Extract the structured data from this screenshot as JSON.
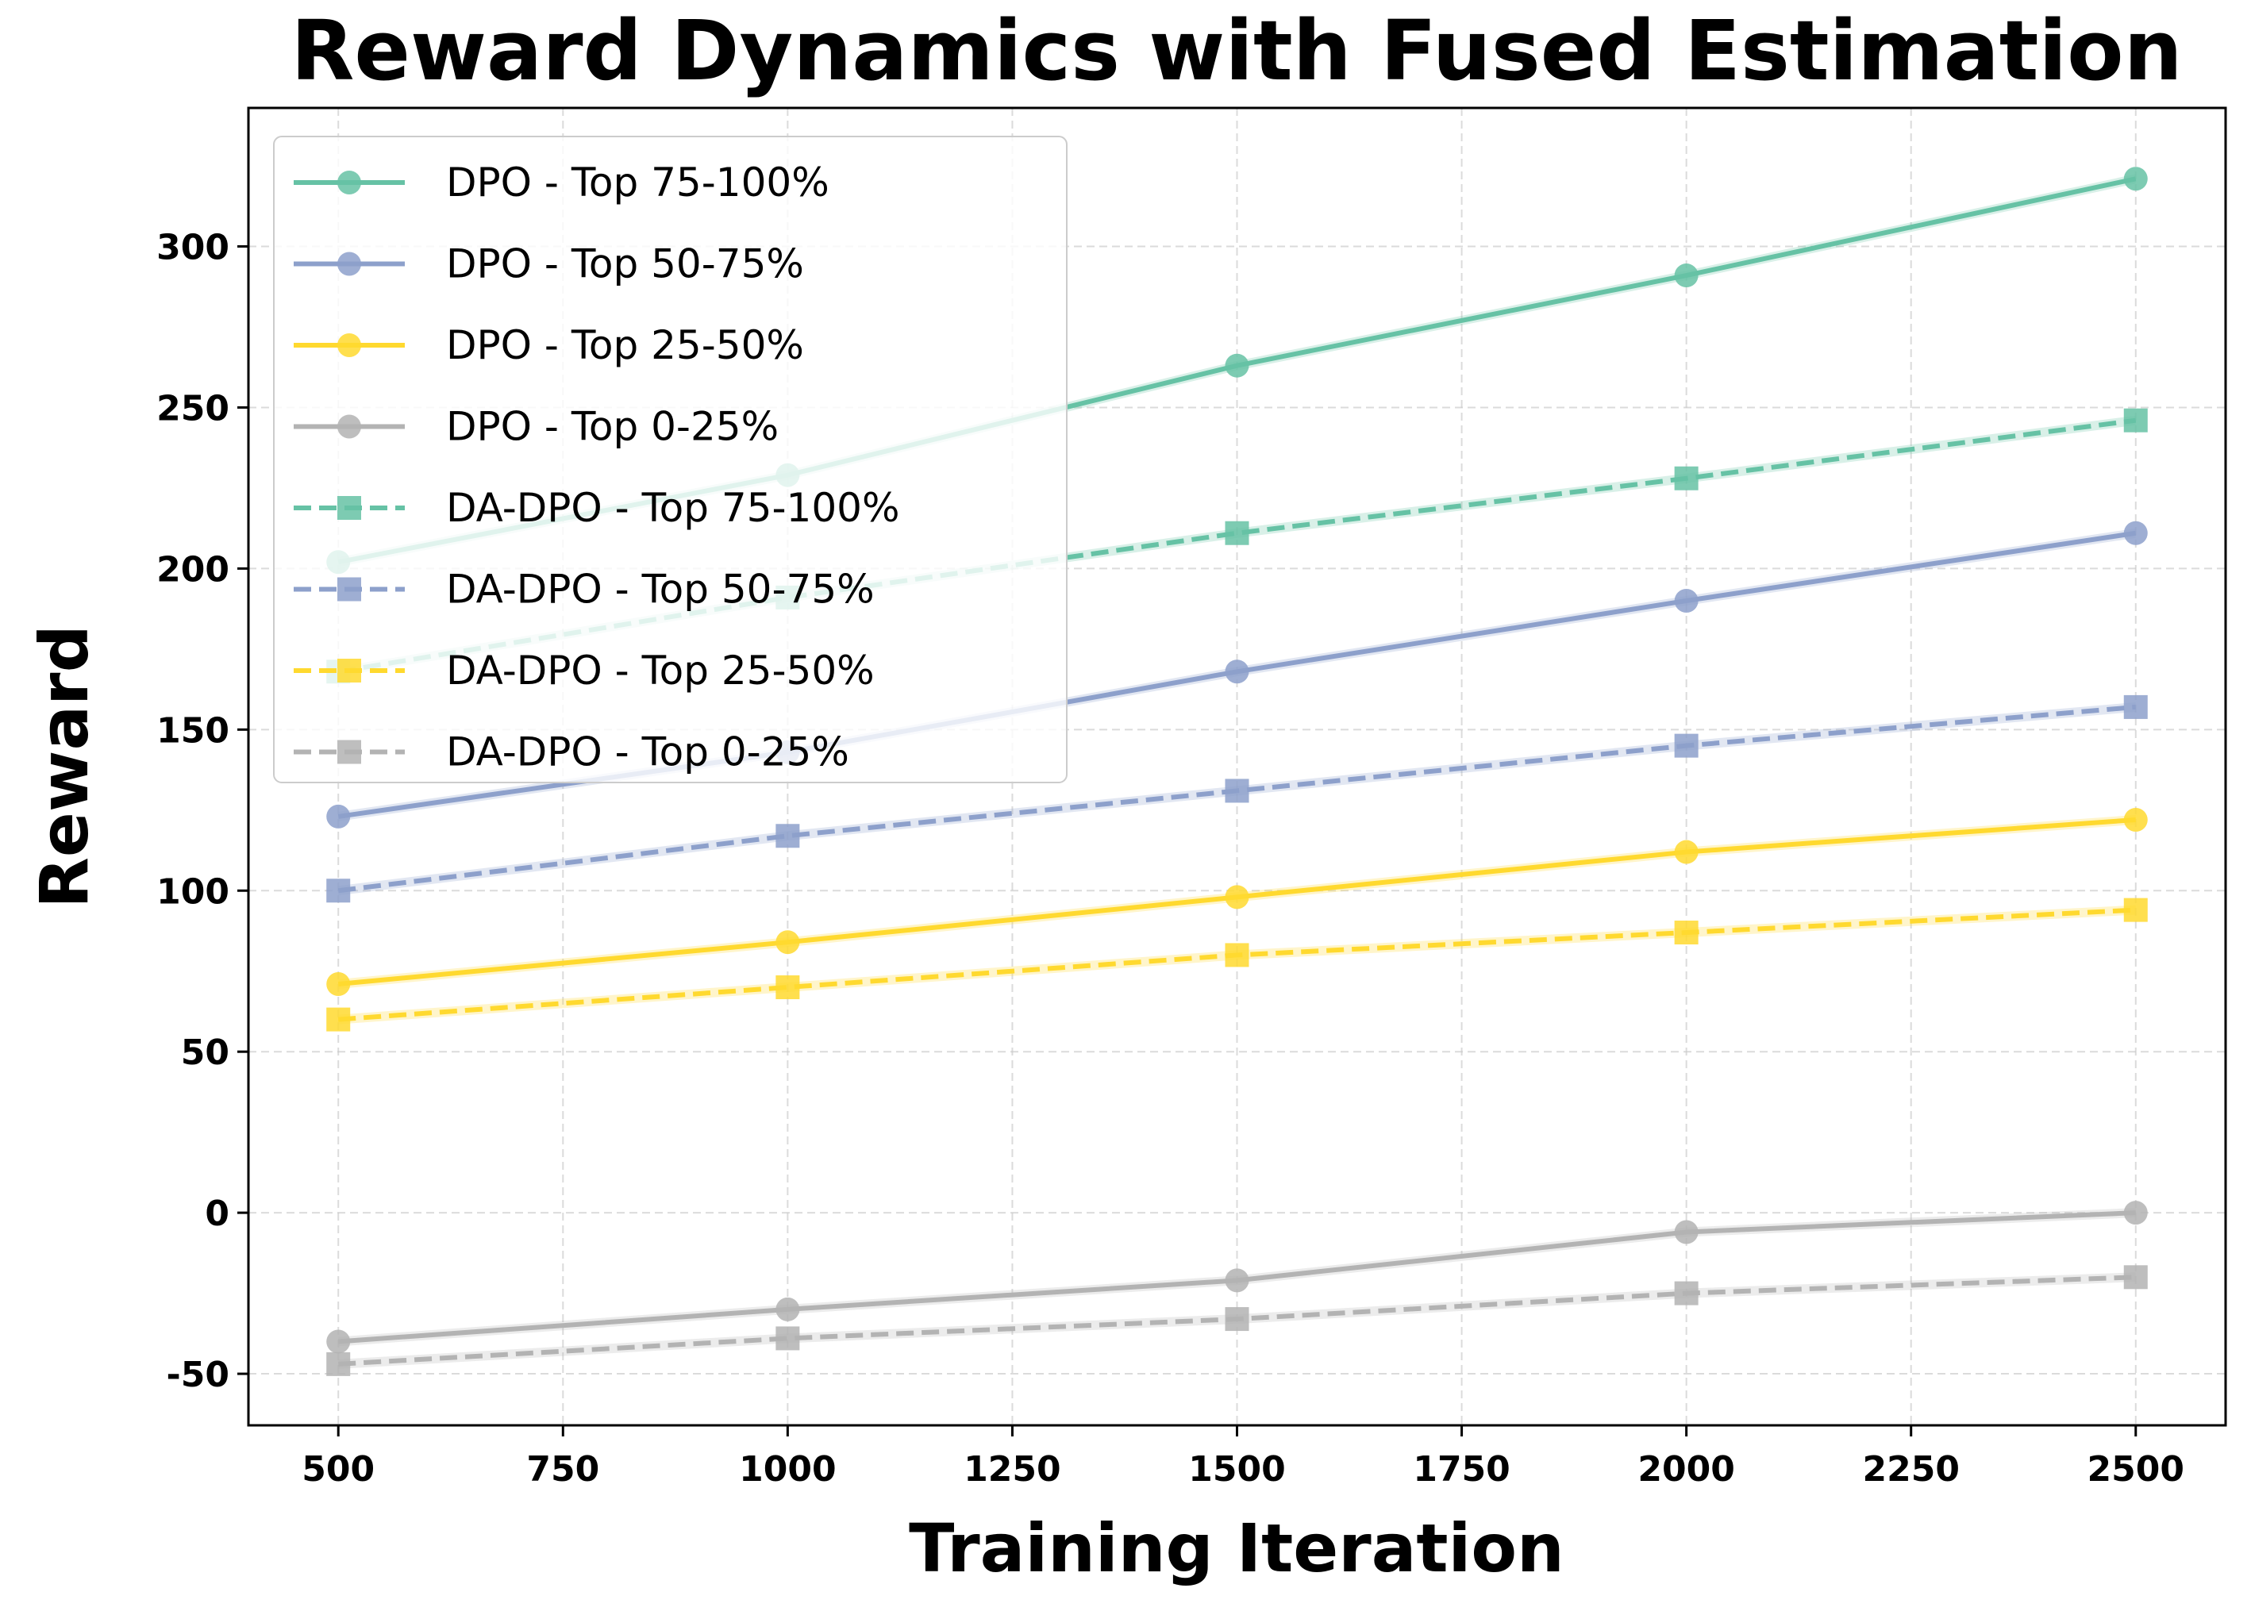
{
  "chart_data": {
    "type": "line",
    "title": "Reward Dynamics with Fused Estimation",
    "xlabel": "Training Iteration",
    "ylabel": "Reward",
    "xlim": [
      400,
      2600
    ],
    "ylim": [
      -66,
      343
    ],
    "xticks": [
      500,
      750,
      1000,
      1250,
      1500,
      1750,
      2000,
      2250,
      2500
    ],
    "yticks": [
      -50,
      0,
      50,
      100,
      150,
      200,
      250,
      300
    ],
    "grid": true,
    "legend_placement": "upper-left",
    "x": [
      500,
      1000,
      1500,
      2000,
      2500
    ],
    "series": [
      {
        "name": "DPO - Top 75-100%",
        "color": "#66c2a5",
        "style": "solid",
        "marker": "circle",
        "values": [
          202,
          229,
          263,
          291,
          321
        ]
      },
      {
        "name": "DPO - Top 50-75%",
        "color": "#8da0cb",
        "style": "solid",
        "marker": "circle",
        "values": [
          123,
          143,
          168,
          190,
          211
        ]
      },
      {
        "name": "DPO - Top 25-50%",
        "color": "#ffd92f",
        "style": "solid",
        "marker": "circle",
        "values": [
          71,
          84,
          98,
          112,
          122
        ]
      },
      {
        "name": "DPO - Top 0-25%",
        "color": "#b3b3b3",
        "style": "solid",
        "marker": "circle",
        "values": [
          -40,
          -30,
          -21,
          -6,
          0
        ]
      },
      {
        "name": "DA-DPO - Top 75-100%",
        "color": "#66c2a5",
        "style": "dashed",
        "marker": "square",
        "values": [
          168,
          191,
          211,
          228,
          246
        ]
      },
      {
        "name": "DA-DPO - Top 50-75%",
        "color": "#8da0cb",
        "style": "dashed",
        "marker": "square",
        "values": [
          100,
          117,
          131,
          145,
          157
        ]
      },
      {
        "name": "DA-DPO - Top 25-50%",
        "color": "#ffd92f",
        "style": "dashed",
        "marker": "square",
        "values": [
          60,
          70,
          80,
          87,
          94
        ]
      },
      {
        "name": "DA-DPO - Top 0-25%",
        "color": "#b3b3b3",
        "style": "dashed",
        "marker": "square",
        "values": [
          -47,
          -39,
          -33,
          -25,
          -20
        ]
      }
    ]
  }
}
